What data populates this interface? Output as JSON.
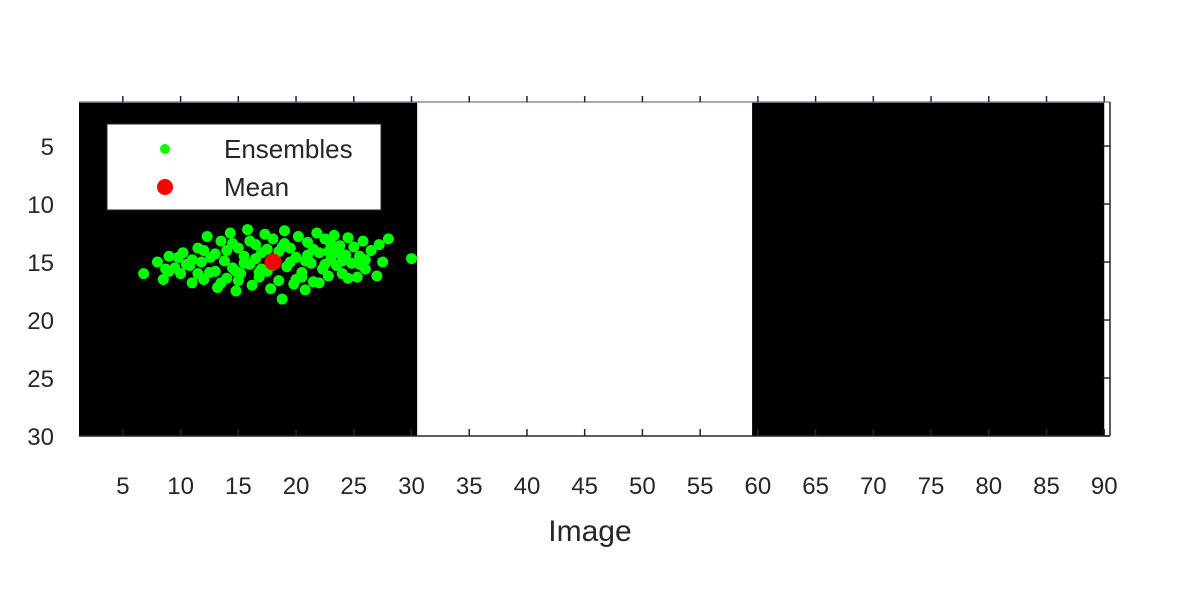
{
  "chart_data": {
    "type": "scatter",
    "title": "",
    "xlabel": "Image",
    "ylabel": "",
    "xlim": [
      1.2,
      90.5
    ],
    "ylim": [
      1.2,
      30
    ],
    "y_reversed": true,
    "x_ticks": [
      "5",
      "10",
      "15",
      "20",
      "25",
      "30",
      "35",
      "40",
      "45",
      "50",
      "55",
      "60",
      "65",
      "70",
      "75",
      "80",
      "85",
      "90"
    ],
    "y_ticks": [
      "5",
      "10",
      "15",
      "20",
      "25",
      "30"
    ],
    "grid": false,
    "legend_position": "top-left",
    "background_panels": [
      {
        "x_range": [
          1.2,
          30.5
        ],
        "color": "#000000"
      },
      {
        "x_range": [
          30.5,
          59.5
        ],
        "color": "#ffffff"
      },
      {
        "x_range": [
          59.5,
          90.0
        ],
        "color": "#000000"
      }
    ],
    "series": [
      {
        "name": "Ensembles",
        "color": "#00ff00",
        "marker": "dot",
        "points": [
          [
            6.8,
            16.0
          ],
          [
            8.0,
            15.0
          ],
          [
            8.5,
            16.5
          ],
          [
            9.0,
            14.5
          ],
          [
            9.5,
            15.5
          ],
          [
            10.0,
            16.0
          ],
          [
            10.2,
            14.2
          ],
          [
            10.8,
            15.3
          ],
          [
            11.0,
            16.8
          ],
          [
            11.5,
            13.8
          ],
          [
            11.8,
            15.0
          ],
          [
            12.0,
            16.5
          ],
          [
            12.3,
            12.8
          ],
          [
            12.6,
            14.6
          ],
          [
            13.0,
            15.8
          ],
          [
            13.2,
            17.2
          ],
          [
            13.5,
            13.2
          ],
          [
            13.8,
            14.9
          ],
          [
            14.0,
            16.4
          ],
          [
            14.3,
            12.5
          ],
          [
            14.5,
            15.5
          ],
          [
            14.8,
            17.5
          ],
          [
            15.0,
            13.8
          ],
          [
            15.2,
            16.0
          ],
          [
            15.5,
            14.5
          ],
          [
            15.8,
            12.2
          ],
          [
            16.0,
            15.2
          ],
          [
            16.2,
            17.0
          ],
          [
            16.5,
            13.5
          ],
          [
            16.8,
            16.3
          ],
          [
            17.0,
            14.2
          ],
          [
            17.3,
            12.6
          ],
          [
            17.5,
            15.8
          ],
          [
            17.8,
            17.3
          ],
          [
            18.0,
            13.0
          ],
          [
            18.2,
            14.8
          ],
          [
            18.5,
            16.6
          ],
          [
            18.8,
            18.2
          ],
          [
            19.0,
            12.3
          ],
          [
            19.2,
            15.4
          ],
          [
            19.5,
            13.8
          ],
          [
            19.8,
            16.9
          ],
          [
            20.0,
            14.6
          ],
          [
            20.2,
            12.8
          ],
          [
            20.5,
            15.9
          ],
          [
            20.8,
            17.4
          ],
          [
            21.0,
            13.3
          ],
          [
            21.3,
            15.1
          ],
          [
            21.5,
            16.7
          ],
          [
            21.8,
            12.5
          ],
          [
            22.0,
            14.2
          ],
          [
            22.3,
            15.6
          ],
          [
            22.5,
            13.0
          ],
          [
            22.8,
            16.2
          ],
          [
            23.0,
            14.8
          ],
          [
            23.3,
            12.7
          ],
          [
            23.5,
            15.3
          ],
          [
            23.8,
            13.6
          ],
          [
            24.0,
            16.0
          ],
          [
            24.3,
            14.4
          ],
          [
            24.5,
            12.9
          ],
          [
            24.8,
            15.1
          ],
          [
            25.0,
            13.7
          ],
          [
            25.3,
            16.3
          ],
          [
            25.5,
            14.5
          ],
          [
            25.8,
            13.2
          ],
          [
            26.0,
            15.6
          ],
          [
            26.5,
            14.0
          ],
          [
            27.0,
            16.2
          ],
          [
            27.2,
            13.5
          ],
          [
            27.5,
            15.0
          ],
          [
            28.0,
            13.0
          ],
          [
            30.0,
            14.7
          ],
          [
            9.0,
            15.8
          ],
          [
            11.0,
            14.8
          ],
          [
            12.5,
            15.9
          ],
          [
            14.0,
            14.0
          ],
          [
            15.5,
            15.1
          ],
          [
            17.0,
            15.6
          ],
          [
            18.5,
            14.1
          ],
          [
            19.5,
            15.0
          ],
          [
            21.0,
            14.4
          ],
          [
            22.5,
            15.2
          ],
          [
            24.0,
            14.9
          ],
          [
            25.5,
            15.2
          ],
          [
            16.0,
            13.2
          ],
          [
            13.5,
            16.8
          ],
          [
            20.5,
            16.3
          ],
          [
            23.0,
            13.4
          ],
          [
            26.0,
            14.8
          ],
          [
            10.5,
            15.2
          ],
          [
            12.0,
            14.0
          ],
          [
            14.5,
            13.4
          ],
          [
            16.5,
            14.7
          ],
          [
            18.0,
            15.3
          ],
          [
            19.0,
            13.4
          ],
          [
            20.0,
            16.5
          ],
          [
            21.5,
            13.9
          ],
          [
            22.0,
            16.8
          ],
          [
            23.5,
            14.2
          ],
          [
            24.5,
            16.4
          ],
          [
            15.0,
            16.6
          ],
          [
            17.5,
            13.9
          ],
          [
            11.5,
            16.0
          ],
          [
            9.8,
            14.6
          ],
          [
            8.7,
            15.6
          ],
          [
            13.0,
            14.3
          ],
          [
            14.8,
            15.8
          ],
          [
            16.8,
            15.9
          ],
          [
            18.8,
            13.7
          ],
          [
            20.8,
            14.9
          ],
          [
            22.8,
            14.1
          ]
        ]
      },
      {
        "name": "Mean",
        "color": "#ff0000",
        "marker": "big-dot",
        "points": [
          [
            18.0,
            15.0
          ]
        ]
      }
    ]
  }
}
